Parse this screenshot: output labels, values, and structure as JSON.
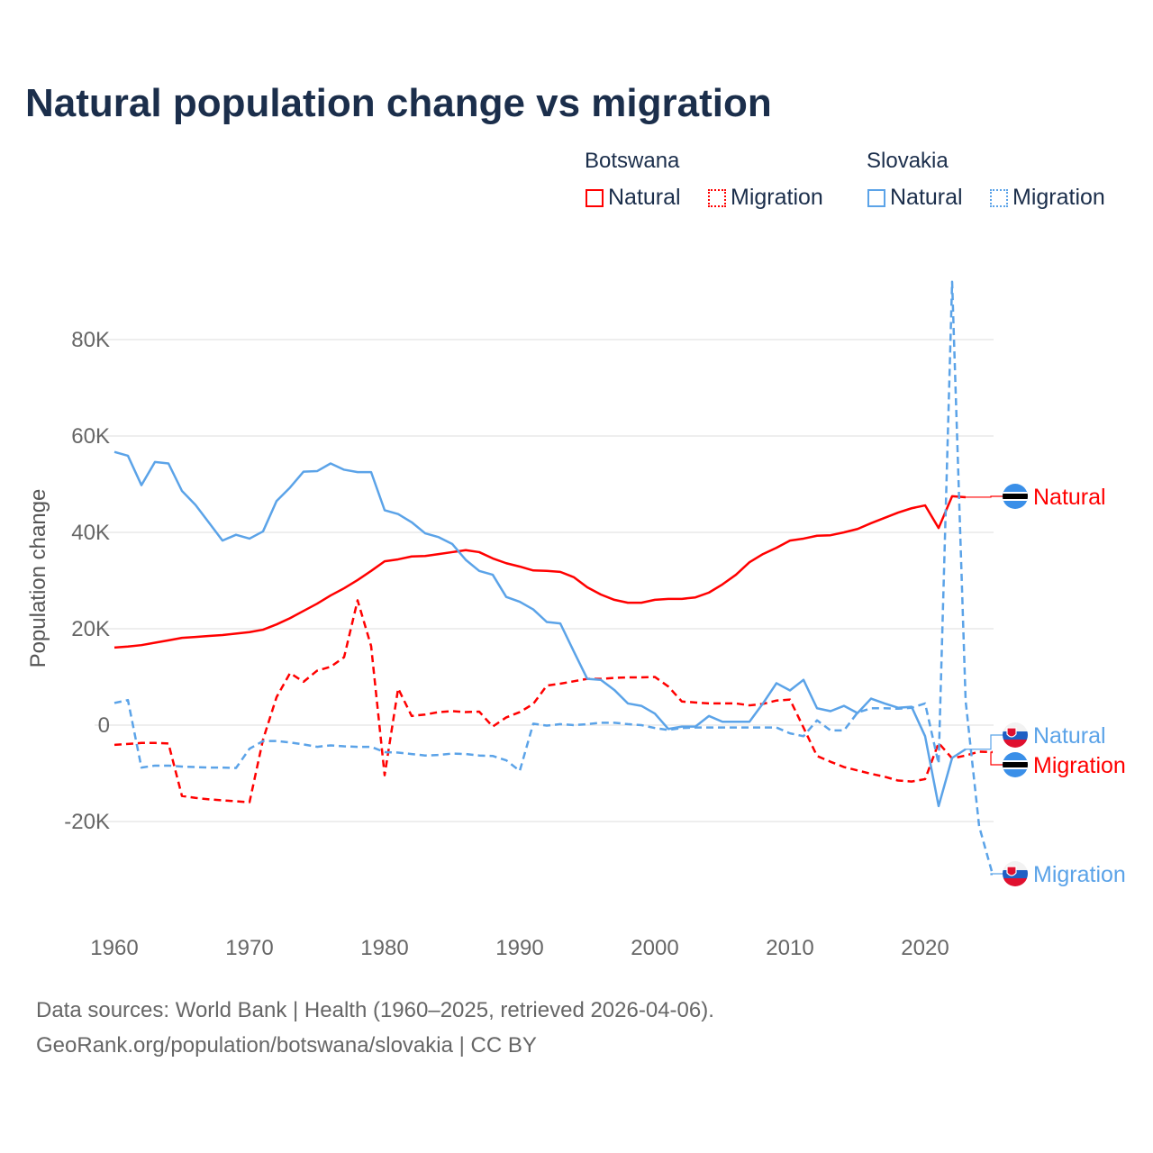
{
  "chart_data": {
    "type": "line",
    "title": "Natural population change vs migration",
    "ylabel": "Population change",
    "xlabel": "",
    "ylim": [
      -38000,
      95000
    ],
    "xlim": [
      1960,
      2025
    ],
    "grid": true,
    "legend_placement": "top-right",
    "y_ticks": [
      {
        "v": 80000,
        "label": "80K"
      },
      {
        "v": 60000,
        "label": "60K"
      },
      {
        "v": 40000,
        "label": "40K"
      },
      {
        "v": 20000,
        "label": "20K"
      },
      {
        "v": 0,
        "label": "0"
      },
      {
        "v": -20000,
        "label": "-20K"
      }
    ],
    "x_ticks": [
      {
        "v": 1960,
        "label": "1960"
      },
      {
        "v": 1970,
        "label": "1970"
      },
      {
        "v": 1980,
        "label": "1980"
      },
      {
        "v": 1990,
        "label": "1990"
      },
      {
        "v": 2000,
        "label": "2000"
      },
      {
        "v": 2010,
        "label": "2010"
      },
      {
        "v": 2020,
        "label": "2020"
      }
    ],
    "x_start": 1960,
    "series": [
      {
        "name": "Botswana Natural",
        "country": "Botswana",
        "kind": "Natural",
        "color": "#ff0000",
        "dash": false,
        "end_label": "Natural",
        "values": [
          16.1,
          16.3,
          16.6,
          17.1,
          17.6,
          18.1,
          18.3,
          18.5,
          18.7,
          19.0,
          19.3,
          19.8,
          20.9,
          22.2,
          23.7,
          25.2,
          26.9,
          28.4,
          30.1,
          32.0,
          34.0,
          34.4,
          35.0,
          35.1,
          35.5,
          35.9,
          36.3,
          35.9,
          34.6,
          33.6,
          32.9,
          32.1,
          32.0,
          31.8,
          30.7,
          28.6,
          27.1,
          26.0,
          25.4,
          25.4,
          26.0,
          26.2,
          26.2,
          26.5,
          27.5,
          29.2,
          31.2,
          33.8,
          35.5,
          36.8,
          38.3,
          38.7,
          39.3,
          39.4,
          40.0,
          40.7,
          41.9,
          43.0,
          44.1,
          45.0,
          45.6,
          40.9,
          47.5,
          47.3
        ]
      },
      {
        "name": "Botswana Migration",
        "country": "Botswana",
        "kind": "Migration",
        "color": "#ff0000",
        "dash": true,
        "end_label": "Migration",
        "values": [
          -4.1,
          -3.9,
          -3.7,
          -3.7,
          -3.8,
          -14.7,
          -15.1,
          -15.4,
          -15.6,
          -15.8,
          -16.0,
          -3.0,
          5.8,
          10.8,
          9.0,
          11.3,
          12.1,
          14.1,
          25.9,
          16.4,
          -10.4,
          7.6,
          1.9,
          2.2,
          2.7,
          2.9,
          2.7,
          2.8,
          -0.3,
          1.6,
          2.7,
          4.4,
          8.2,
          8.6,
          9.1,
          9.6,
          9.6,
          9.8,
          9.9,
          9.9,
          10.0,
          8.0,
          4.9,
          4.7,
          4.5,
          4.5,
          4.5,
          4.1,
          4.4,
          5.1,
          5.3,
          -0.5,
          -6.4,
          -7.6,
          -8.7,
          -9.4,
          -10.1,
          -10.7,
          -11.5,
          -11.7,
          -11.2,
          -3.7,
          -6.9,
          -6.3,
          -5.5,
          -5.6
        ]
      },
      {
        "name": "Slovakia Natural",
        "country": "Slovakia",
        "kind": "Natural",
        "color": "#5ba3e8",
        "dash": false,
        "end_label": "Natural",
        "values": [
          56.7,
          55.9,
          49.8,
          54.6,
          54.3,
          48.6,
          45.7,
          42.0,
          38.3,
          39.5,
          38.7,
          40.2,
          46.5,
          49.3,
          52.6,
          52.7,
          54.3,
          53.0,
          52.5,
          52.5,
          44.6,
          43.8,
          42.1,
          39.8,
          39.0,
          37.6,
          34.3,
          32.0,
          31.2,
          26.6,
          25.6,
          24.0,
          21.4,
          21.1,
          15.3,
          9.6,
          9.4,
          7.3,
          4.5,
          4.0,
          2.4,
          -0.8,
          -0.3,
          -0.3,
          1.9,
          0.7,
          0.7,
          0.7,
          4.5,
          8.7,
          7.2,
          9.4,
          3.5,
          2.9,
          4.0,
          2.5,
          5.5,
          4.5,
          3.6,
          3.8,
          -2.3,
          -16.8,
          -6.8,
          -5.0
        ]
      },
      {
        "name": "Slovakia Migration",
        "country": "Slovakia",
        "kind": "Migration",
        "color": "#5ba3e8",
        "dash": true,
        "end_label": "Migration",
        "values": [
          4.6,
          5.2,
          -8.8,
          -8.4,
          -8.4,
          -8.6,
          -8.7,
          -8.8,
          -8.8,
          -8.9,
          -4.9,
          -3.3,
          -3.3,
          -3.6,
          -4.0,
          -4.5,
          -4.2,
          -4.4,
          -4.5,
          -4.5,
          -5.6,
          -5.7,
          -6.0,
          -6.3,
          -6.2,
          -5.9,
          -6.0,
          -6.3,
          -6.4,
          -7.3,
          -9.5,
          0.3,
          -0.1,
          0.2,
          0.0,
          0.2,
          0.5,
          0.5,
          0.2,
          0.0,
          -0.6,
          -1.0,
          -0.6,
          -0.5,
          -0.5,
          -0.5,
          -0.5,
          -0.5,
          -0.5,
          -0.5,
          -1.7,
          -2.3,
          1.0,
          -1.1,
          -1.1,
          2.6,
          3.5,
          3.5,
          3.4,
          3.6,
          4.5,
          -8.0,
          92.0,
          5.0,
          -21.0,
          -31.0
        ]
      }
    ],
    "value_unit": "thousands"
  },
  "legend": {
    "botswana": "Botswana",
    "slovakia": "Slovakia",
    "natural": "Natural",
    "migration": "Migration"
  },
  "footer": {
    "line1": "Data sources: World Bank | Health (1960–2025, retrieved 2026-04-06).",
    "line2": "GeoRank.org/population/botswana/slovakia | CC BY"
  }
}
